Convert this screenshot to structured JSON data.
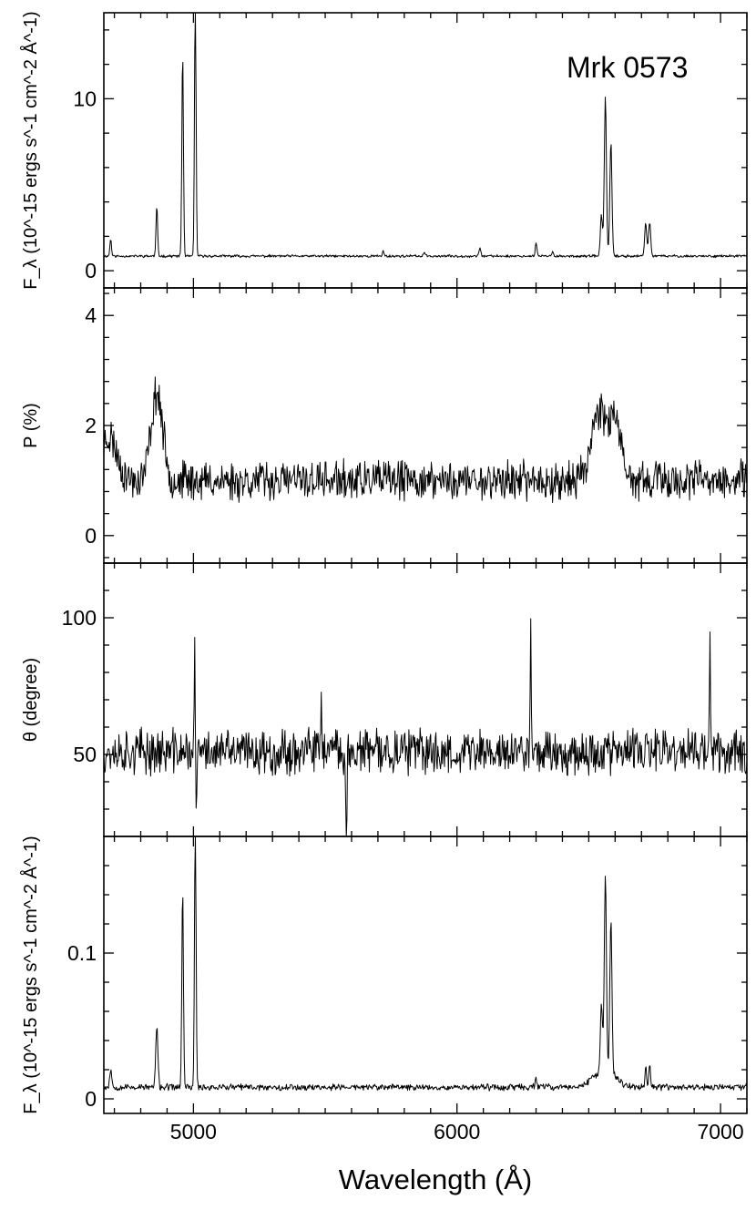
{
  "chart_data": {
    "type": "line",
    "object_label": "Mrk 0573",
    "xlabel": "Wavelength  (Å)",
    "xlim": [
      4660,
      7100
    ],
    "xticks": [
      5000,
      6000,
      7000
    ],
    "xtick_labels": [
      "5000",
      "6000",
      "7000"
    ],
    "panels": [
      {
        "ylabel": "F_λ (10^-15 ergs s^-1 cm^-2 Å^-1)",
        "ylim": [
          -1,
          15
        ],
        "yticks": [
          0,
          10
        ],
        "ytick_labels": [
          "0",
          "10"
        ],
        "baseline": 0.85,
        "noise": 0.06,
        "seed": 11,
        "lines": [
          [
            4686,
            1.0,
            3
          ],
          [
            4861,
            2.9,
            3
          ],
          [
            4959,
            11.9,
            3
          ],
          [
            5007,
            15,
            3
          ],
          [
            5720,
            0.3,
            3
          ],
          [
            5876,
            0.25,
            3
          ],
          [
            6087,
            0.55,
            3
          ],
          [
            6300,
            0.8,
            3
          ],
          [
            6364,
            0.25,
            3
          ],
          [
            6548,
            2.4,
            4
          ],
          [
            6563,
            9.3,
            4
          ],
          [
            6584,
            6.6,
            4
          ],
          [
            6716,
            1.9,
            4
          ],
          [
            6731,
            2.0,
            4
          ]
        ]
      },
      {
        "ylabel": "P  (%)",
        "ylim": [
          -0.5,
          4.5
        ],
        "yticks": [
          0,
          2,
          4
        ],
        "ytick_labels": [
          "0",
          "2",
          "4"
        ],
        "baseline": 1.0,
        "noise": 0.28,
        "seed": 23,
        "lines": [
          [
            4680,
            0.8,
            30
          ],
          [
            4861,
            1.6,
            22
          ],
          [
            6540,
            1.3,
            30
          ],
          [
            6600,
            1.0,
            20
          ]
        ]
      },
      {
        "ylabel": "θ  (degree)",
        "ylim": [
          20,
          120
        ],
        "yticks": [
          50,
          100
        ],
        "ytick_labels": [
          "50",
          "100"
        ],
        "baseline": 51,
        "noise": 6.5,
        "seed": 37,
        "lines": [
          [
            5005,
            36,
            2
          ],
          [
            5485,
            25,
            2
          ],
          [
            6280,
            48,
            2
          ],
          [
            6960,
            40,
            2
          ],
          [
            5580,
            -45,
            2
          ],
          [
            5010,
            -25,
            2
          ]
        ]
      },
      {
        "ylabel": "F_λ (10^-15 ergs s^-1 cm^-2 Å^-1)",
        "ylim": [
          -0.01,
          0.18
        ],
        "yticks": [
          0,
          0.1
        ],
        "ytick_labels": [
          "0",
          "0.1"
        ],
        "baseline": 0.008,
        "noise": 0.0018,
        "seed": 53,
        "lines": [
          [
            4686,
            0.012,
            4
          ],
          [
            4861,
            0.042,
            4
          ],
          [
            4959,
            0.138,
            3
          ],
          [
            5007,
            0.18,
            3
          ],
          [
            6300,
            0.008,
            3
          ],
          [
            6548,
            0.045,
            4
          ],
          [
            6563,
            0.134,
            4
          ],
          [
            6584,
            0.105,
            4
          ],
          [
            6560,
            0.012,
            40
          ],
          [
            6716,
            0.015,
            3
          ],
          [
            6731,
            0.016,
            3
          ]
        ]
      }
    ]
  }
}
